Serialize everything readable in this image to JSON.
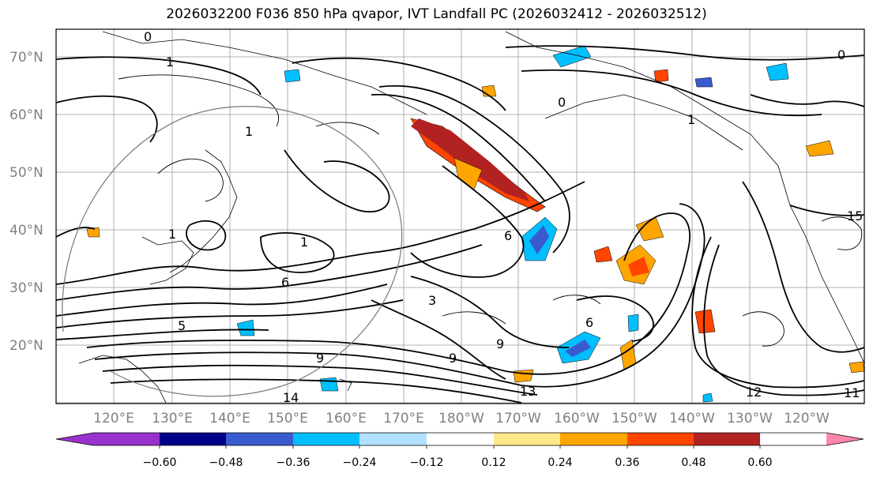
{
  "title": "2026032200 F036 850 hPa qvapor, IVT Landfall PC (2026032412 - 2026032512)",
  "map": {
    "lat_labels": [
      "70°N",
      "60°N",
      "50°N",
      "40°N",
      "30°N",
      "20°N"
    ],
    "lon_labels": [
      "120°E",
      "130°E",
      "140°E",
      "150°E",
      "160°E",
      "170°E",
      "180°W",
      "170°W",
      "160°W",
      "150°W",
      "140°W",
      "130°W",
      "120°W"
    ],
    "contour_labels": [
      "0",
      "1",
      "0",
      "1",
      "1",
      "1",
      "1",
      "6",
      "6",
      "3",
      "9",
      "9",
      "9",
      "13",
      "14",
      "12",
      "11",
      "15",
      "5",
      "6",
      "0"
    ]
  },
  "colorbar": {
    "tick_labels": [
      "−0.60",
      "−0.48",
      "−0.36",
      "−0.24",
      "−0.12",
      "0.12",
      "0.24",
      "0.36",
      "0.48",
      "0.60"
    ],
    "colors": [
      "#9932cc",
      "#00008b",
      "#3a5bd0",
      "#00bfff",
      "#b0e2ff",
      "#ffffff",
      "#ffe88a",
      "#ffa500",
      "#ff4500",
      "#b22222",
      "#ff88aa"
    ]
  }
}
